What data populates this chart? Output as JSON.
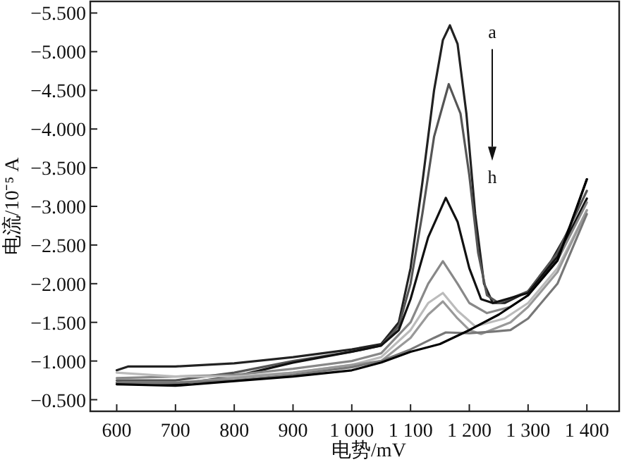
{
  "chart_data": {
    "type": "line",
    "xlabel": "电势/mV",
    "ylabel": "电流/10⁻⁵ A",
    "annotations": [
      "a",
      "h"
    ],
    "xlim": [
      555,
      1455
    ],
    "ylim": [
      -0.35,
      -5.65
    ],
    "xticks": [
      600,
      700,
      800,
      900,
      {
        "value": 1000,
        "label": "1 000"
      },
      {
        "value": 1100,
        "label": "1 100"
      },
      {
        "value": 1200,
        "label": "1 200"
      },
      {
        "value": 1300,
        "label": "1 300"
      },
      {
        "value": 1400,
        "label": "1 400"
      }
    ],
    "yticks": [
      {
        "value": -0.5,
        "label": "−0.500"
      },
      {
        "value": -1,
        "label": "−1.000"
      },
      {
        "value": -1.5,
        "label": "−1.500"
      },
      {
        "value": -2,
        "label": "−2.000"
      },
      {
        "value": -2.5,
        "label": "−2.500"
      },
      {
        "value": -3,
        "label": "−3.000"
      },
      {
        "value": -3.5,
        "label": "−3.500"
      },
      {
        "value": -4,
        "label": "−4.000"
      },
      {
        "value": -4.5,
        "label": "−4.500"
      },
      {
        "value": -5,
        "label": "−5.000"
      },
      {
        "value": -5.5,
        "label": "−5.500"
      }
    ],
    "series": [
      {
        "color": "#222222",
        "x": [
          600,
          620,
          700,
          800,
          900,
          1000,
          1050,
          1080,
          1100,
          1120,
          1140,
          1155,
          1167,
          1180,
          1195,
          1210,
          1225,
          1240,
          1260,
          1300,
          1340,
          1370,
          1400
        ],
        "values": [
          -0.88,
          -0.93,
          -0.93,
          -0.97,
          -1.05,
          -1.15,
          -1.22,
          -1.5,
          -2.2,
          -3.3,
          -4.5,
          -5.15,
          -5.34,
          -5.1,
          -4.2,
          -2.9,
          -2.0,
          -1.75,
          -1.75,
          -1.9,
          -2.3,
          -2.7,
          -3.35
        ]
      },
      {
        "color": "#555555",
        "x": [
          600,
          700,
          800,
          900,
          1000,
          1050,
          1080,
          1100,
          1120,
          1140,
          1165,
          1185,
          1200,
          1215,
          1230,
          1250,
          1300,
          1350,
          1400
        ],
        "values": [
          -0.75,
          -0.75,
          -0.85,
          -1.0,
          -1.12,
          -1.2,
          -1.45,
          -2.0,
          -2.9,
          -3.9,
          -4.58,
          -4.2,
          -3.4,
          -2.4,
          -1.85,
          -1.75,
          -1.9,
          -2.4,
          -3.2
        ]
      },
      {
        "color": "#111111",
        "x": [
          600,
          700,
          800,
          900,
          1000,
          1050,
          1080,
          1100,
          1130,
          1160,
          1180,
          1200,
          1220,
          1240,
          1300,
          1350,
          1400
        ],
        "values": [
          -0.72,
          -0.7,
          -0.8,
          -0.98,
          -1.12,
          -1.2,
          -1.4,
          -1.8,
          -2.6,
          -3.11,
          -2.8,
          -2.2,
          -1.8,
          -1.75,
          -1.88,
          -2.35,
          -3.1
        ]
      },
      {
        "color": "#888888",
        "x": [
          600,
          700,
          800,
          900,
          1000,
          1050,
          1100,
          1130,
          1155,
          1180,
          1200,
          1230,
          1270,
          1300,
          1350,
          1400
        ],
        "values": [
          -0.78,
          -0.8,
          -0.82,
          -0.9,
          -1.0,
          -1.1,
          -1.5,
          -2.0,
          -2.29,
          -2.0,
          -1.75,
          -1.62,
          -1.7,
          -1.85,
          -2.3,
          -3.05
        ]
      },
      {
        "color": "#bbbbbb",
        "x": [
          600,
          700,
          800,
          900,
          1000,
          1050,
          1100,
          1130,
          1155,
          1180,
          1210,
          1260,
          1300,
          1350,
          1400
        ],
        "values": [
          -0.85,
          -0.8,
          -0.8,
          -0.85,
          -0.95,
          -1.05,
          -1.4,
          -1.75,
          -1.88,
          -1.65,
          -1.45,
          -1.55,
          -1.75,
          -2.2,
          -2.95
        ]
      },
      {
        "color": "#999999",
        "x": [
          600,
          700,
          800,
          900,
          1000,
          1050,
          1100,
          1130,
          1155,
          1180,
          1200,
          1220,
          1270,
          1300,
          1350,
          1400
        ],
        "values": [
          -0.7,
          -0.72,
          -0.78,
          -0.85,
          -0.95,
          -1.0,
          -1.3,
          -1.6,
          -1.77,
          -1.55,
          -1.4,
          -1.35,
          -1.5,
          -1.7,
          -2.15,
          -2.95
        ]
      },
      {
        "color": "#777777",
        "x": [
          600,
          700,
          800,
          900,
          1000,
          1050,
          1100,
          1140,
          1160,
          1200,
          1240,
          1270,
          1300,
          1350,
          1400
        ],
        "values": [
          -0.72,
          -0.72,
          -0.75,
          -0.82,
          -0.92,
          -1.0,
          -1.15,
          -1.3,
          -1.37,
          -1.36,
          -1.38,
          -1.4,
          -1.55,
          -2.0,
          -2.9
        ]
      },
      {
        "color": "#000000",
        "x": [
          600,
          700,
          800,
          900,
          1000,
          1050,
          1100,
          1150,
          1200,
          1250,
          1300,
          1350,
          1400
        ],
        "values": [
          -0.7,
          -0.68,
          -0.74,
          -0.8,
          -0.88,
          -0.98,
          -1.12,
          -1.22,
          -1.4,
          -1.6,
          -1.85,
          -2.3,
          -3.35
        ]
      }
    ]
  }
}
